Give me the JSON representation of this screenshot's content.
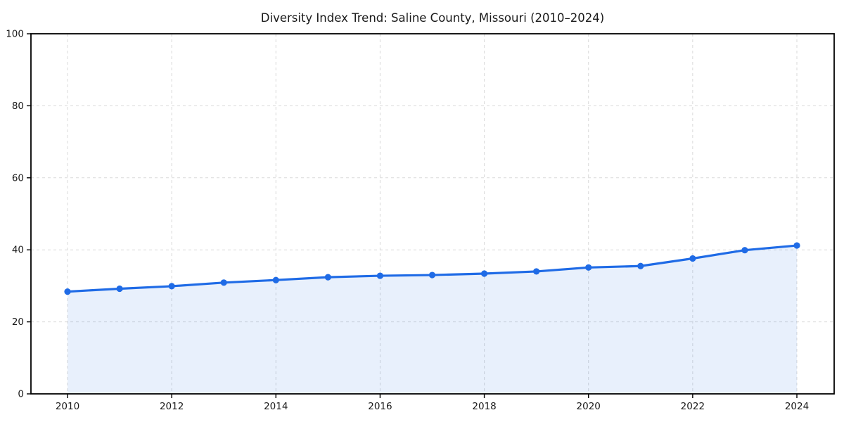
{
  "chart_data": {
    "type": "line",
    "title": "Diversity Index Trend: Saline County, Missouri (2010–2024)",
    "series_name": "Diversity Index",
    "x": [
      2010,
      2011,
      2012,
      2013,
      2014,
      2015,
      2016,
      2017,
      2018,
      2019,
      2020,
      2021,
      2022,
      2023,
      2024
    ],
    "values": [
      28.4,
      29.2,
      29.9,
      30.9,
      31.6,
      32.4,
      32.8,
      33.0,
      33.4,
      34.0,
      35.1,
      35.5,
      37.6,
      39.9,
      41.2
    ],
    "xlabel": "",
    "ylabel": "",
    "ylim": [
      0,
      100
    ],
    "y_ticks": [
      0,
      20,
      40,
      60,
      80,
      100
    ],
    "x_ticks": [
      2010,
      2012,
      2014,
      2016,
      2018,
      2020,
      2022,
      2024
    ],
    "grid": "dashed",
    "legend_position": "none",
    "line_color": "#1f6be6",
    "fill_color": "rgba(31, 107, 230, 0.10)",
    "grid_color": "#d9d9d9",
    "spine_color": "#000000",
    "marker": "circle"
  }
}
